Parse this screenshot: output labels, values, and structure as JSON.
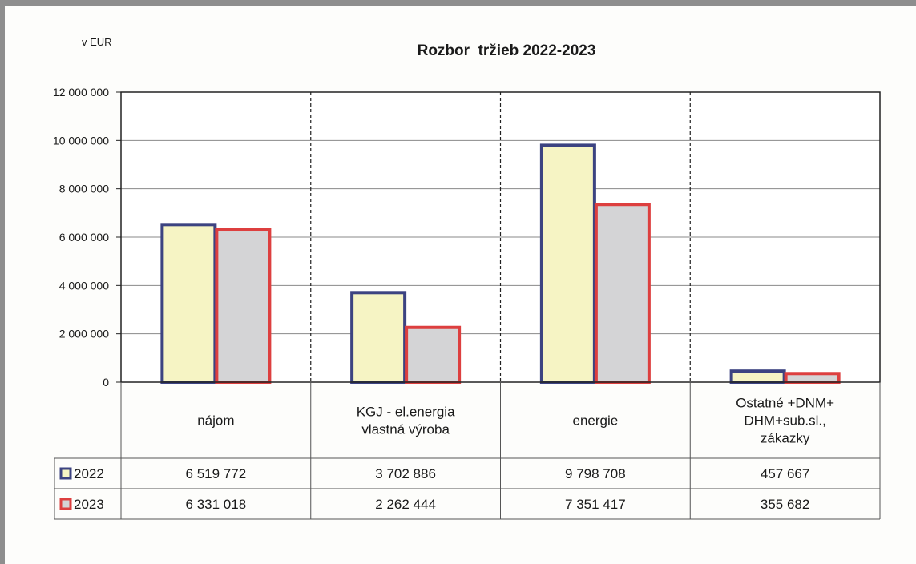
{
  "chart_data": {
    "type": "bar",
    "title": "Rozbor  tržieb 2022-2023",
    "unit_label": "v EUR",
    "categories": [
      [
        "nájom"
      ],
      [
        "KGJ - el.energia",
        "vlastná výroba"
      ],
      [
        "energie"
      ],
      [
        "Ostatné +DNM+",
        "DHM+sub.sl.,",
        "zákazky"
      ]
    ],
    "ylim": [
      0,
      12000000
    ],
    "yticks": [
      0,
      2000000,
      4000000,
      6000000,
      8000000,
      10000000,
      12000000
    ],
    "ytick_labels": [
      "0",
      "2 000 000",
      "4 000 000",
      "6 000 000",
      "8 000 000",
      "10 000 000",
      "12 000 000"
    ],
    "series": [
      {
        "name": "2022",
        "values": [
          6519772,
          3702886,
          9798708,
          457667
        ],
        "value_labels": [
          "6 519 772",
          "3 702 886",
          "9 798 708",
          "457 667"
        ],
        "fill": "#f6f4c4",
        "stroke": "#3c4381"
      },
      {
        "name": "2023",
        "values": [
          6331018,
          2262444,
          7351417,
          355682
        ],
        "value_labels": [
          "6 331 018",
          "2 262 444",
          "7 351 417",
          "355 682"
        ],
        "fill": "#d4d4d6",
        "stroke": "#dd3f3f"
      }
    ],
    "grid": true,
    "legend": "data-table"
  }
}
